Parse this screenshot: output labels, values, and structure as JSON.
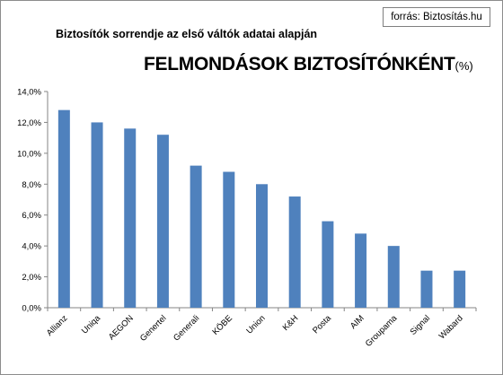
{
  "source_label": "forrás: Biztosítás.hu",
  "chart_data": {
    "type": "bar",
    "subtitle": "Biztosítók sorrendje  az első váltók adatai alapján",
    "title": "FELMONDÁSOK BIZTOSÍTÓNKÉNT",
    "title_unit": "(%)",
    "categories": [
      "Allianz",
      "Uniqa",
      "AEGON",
      "Genertel",
      "Generali",
      "KÖBE",
      "Union",
      "K&H",
      "Posta",
      "AIM",
      "Groupama",
      "Signal",
      "Wabard"
    ],
    "values": [
      12.8,
      12.0,
      11.6,
      11.2,
      9.2,
      8.8,
      8.0,
      7.2,
      5.6,
      4.8,
      4.0,
      2.4,
      2.4
    ],
    "ylim": [
      0,
      14
    ],
    "yticks": [
      0,
      2,
      4,
      6,
      8,
      10,
      12,
      14
    ],
    "ytick_labels": [
      "0,0%",
      "2,0%",
      "4,0%",
      "6,0%",
      "8,0%",
      "10,0%",
      "12,0%",
      "14,0%"
    ],
    "bar_color": "#4f81bd",
    "grid": false,
    "legend": "none"
  }
}
